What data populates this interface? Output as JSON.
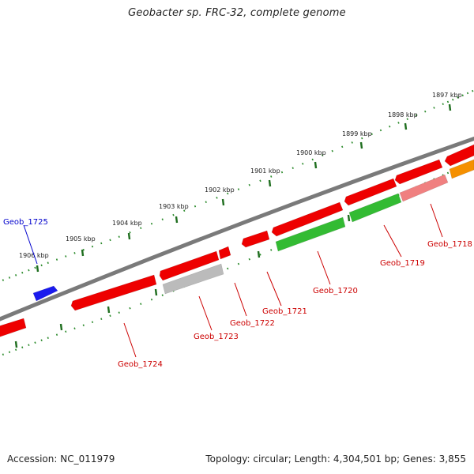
{
  "title": "Geobacter sp. FRC-32, complete genome",
  "footer": {
    "accession": "Accession: NC_011979",
    "summary": "Topology: circular; Length: 4,304,501 bp; Genes: 3,855"
  },
  "colors": {
    "backbone": "#7a7a7a",
    "tick": "#2a8a2a",
    "red": "#ee0000",
    "red_light": "#f08080",
    "green": "#33bb33",
    "gray": "#bbbbbb",
    "blue": "#1a1aee",
    "orange": "#f59000",
    "label_red": "#cc0000",
    "label_blue": "#0000cc"
  },
  "scale_ticks": [
    {
      "label": "1897 kbp"
    },
    {
      "label": "1898 kbp"
    },
    {
      "label": "1899 kbp"
    },
    {
      "label": "1900 kbp"
    },
    {
      "label": "1901 kbp"
    },
    {
      "label": "1902 kbp"
    },
    {
      "label": "1903 kbp"
    },
    {
      "label": "1904 kbp"
    },
    {
      "label": "1905 kbp"
    },
    {
      "label": "1906 kbp"
    }
  ],
  "genes": [
    {
      "label": "Geob_1718",
      "color": "red_light"
    },
    {
      "label": "Geob_1719",
      "color": "green"
    },
    {
      "label": "Geob_1720",
      "color": "green"
    },
    {
      "label": "Geob_1721",
      "color": "red"
    },
    {
      "label": "Geob_1722",
      "color": "red"
    },
    {
      "label": "Geob_1723",
      "color": "gray"
    },
    {
      "label": "Geob_1724",
      "color": "red"
    },
    {
      "label": "Geob_1725",
      "color": "blue"
    }
  ]
}
